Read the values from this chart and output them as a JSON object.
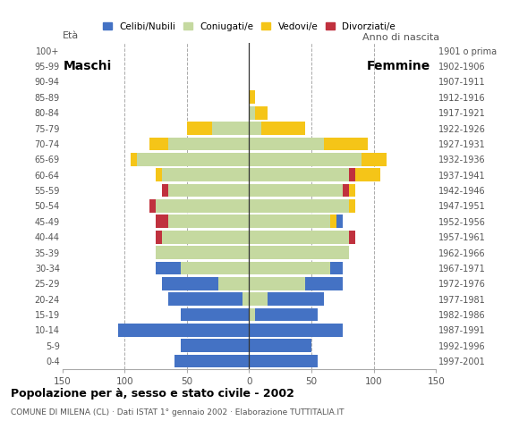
{
  "age_groups": [
    "0-4",
    "5-9",
    "10-14",
    "15-19",
    "20-24",
    "25-29",
    "30-34",
    "35-39",
    "40-44",
    "45-49",
    "50-54",
    "55-59",
    "60-64",
    "65-69",
    "70-74",
    "75-79",
    "80-84",
    "85-89",
    "90-94",
    "95-99",
    "100+"
  ],
  "birth_years": [
    "1997-2001",
    "1992-1996",
    "1987-1991",
    "1982-1986",
    "1977-1981",
    "1972-1976",
    "1967-1971",
    "1962-1966",
    "1957-1961",
    "1952-1956",
    "1947-1951",
    "1942-1946",
    "1937-1941",
    "1932-1936",
    "1927-1931",
    "1922-1926",
    "1917-1921",
    "1912-1916",
    "1907-1911",
    "1902-1906",
    "1901 o prima"
  ],
  "males": {
    "celibi": [
      60,
      55,
      105,
      55,
      60,
      45,
      20,
      0,
      0,
      0,
      0,
      0,
      0,
      0,
      0,
      0,
      0,
      0,
      0,
      0,
      0
    ],
    "coniugati": [
      0,
      0,
      0,
      0,
      5,
      25,
      55,
      75,
      70,
      65,
      75,
      65,
      70,
      90,
      65,
      30,
      0,
      0,
      0,
      0,
      0
    ],
    "vedovi": [
      0,
      0,
      0,
      0,
      0,
      0,
      0,
      0,
      0,
      0,
      0,
      0,
      5,
      5,
      15,
      20,
      0,
      0,
      0,
      0,
      0
    ],
    "divorziati": [
      0,
      0,
      0,
      0,
      0,
      0,
      0,
      0,
      5,
      10,
      5,
      5,
      0,
      0,
      0,
      0,
      0,
      0,
      0,
      0,
      0
    ]
  },
  "females": {
    "nubili": [
      55,
      50,
      75,
      50,
      45,
      30,
      10,
      0,
      0,
      5,
      0,
      0,
      0,
      0,
      0,
      0,
      0,
      0,
      0,
      0,
      0
    ],
    "coniugate": [
      0,
      0,
      0,
      5,
      15,
      45,
      65,
      80,
      80,
      65,
      80,
      75,
      80,
      90,
      60,
      10,
      5,
      0,
      0,
      0,
      0
    ],
    "vedove": [
      0,
      0,
      0,
      0,
      0,
      0,
      0,
      0,
      0,
      5,
      5,
      5,
      20,
      20,
      35,
      35,
      10,
      5,
      0,
      0,
      0
    ],
    "divorziate": [
      0,
      0,
      0,
      0,
      0,
      0,
      0,
      0,
      5,
      0,
      0,
      5,
      5,
      0,
      0,
      0,
      0,
      0,
      0,
      0,
      0
    ]
  },
  "colors": {
    "celibi": "#4472c4",
    "coniugati": "#c5d9a0",
    "vedovi": "#f5c518",
    "divorziati": "#c0313e"
  },
  "xlim": 150,
  "title": "Popolazione per à, sesso e stato civile - 2002",
  "subtitle": "COMUNE DI MILENA (CL) · Dati ISTAT 1° gennaio 2002 · Elaborazione TUTTITALIA.IT",
  "ylabel_left": "Età",
  "ylabel_right": "Anno di nascita",
  "label_maschi": "Maschi",
  "label_femmine": "Femmine",
  "legend_labels": [
    "Celibi/Nubili",
    "Coniugati/e",
    "Vedovi/e",
    "Divorziati/e"
  ]
}
